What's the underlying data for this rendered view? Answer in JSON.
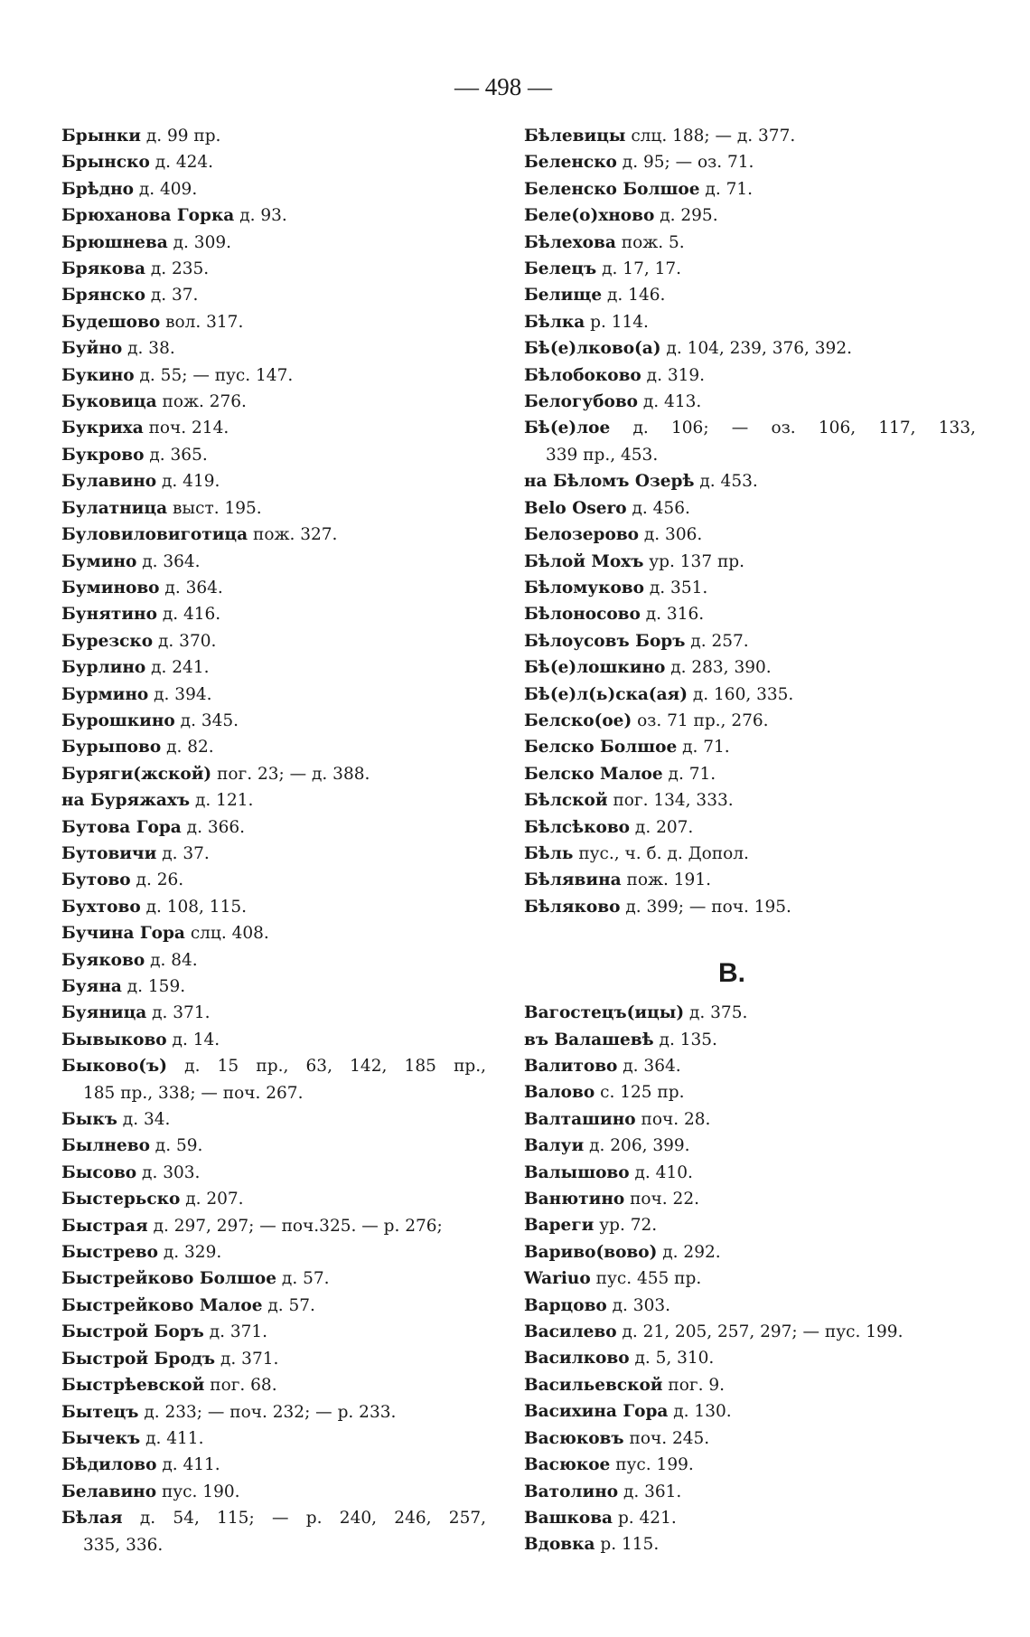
{
  "page_number": "— 498 —",
  "left_column": [
    {
      "name": "Брынки",
      "ref": "д. 99 пр."
    },
    {
      "name": "Брынско",
      "ref": "д. 424."
    },
    {
      "name": "Брѣдно",
      "ref": "д. 409."
    },
    {
      "name": "Брюханова Горка",
      "ref": "д. 93."
    },
    {
      "name": "Брюшнева",
      "ref": "д. 309."
    },
    {
      "name": "Брякова",
      "ref": "д. 235."
    },
    {
      "name": "Брянско",
      "ref": "д. 37."
    },
    {
      "name": "Будешово",
      "ref": "вол. 317."
    },
    {
      "name": "Буйно",
      "ref": "д. 38."
    },
    {
      "name": "Букино",
      "ref": "д. 55; — пус. 147."
    },
    {
      "name": "Буковица",
      "ref": "пож. 276."
    },
    {
      "name": "Букриха",
      "ref": "поч. 214."
    },
    {
      "name": "Букрово",
      "ref": "д. 365."
    },
    {
      "name": "Булавино",
      "ref": "д. 419."
    },
    {
      "name": "Булатница",
      "ref": "выст. 195."
    },
    {
      "name": "Буловиловиготица",
      "ref": "пож. 327."
    },
    {
      "name": "Бумино",
      "ref": "д. 364."
    },
    {
      "name": "Буминово",
      "ref": "д. 364."
    },
    {
      "name": "Бунятино",
      "ref": "д. 416."
    },
    {
      "name": "Бурезско",
      "ref": "д. 370."
    },
    {
      "name": "Бурлино",
      "ref": "д. 241."
    },
    {
      "name": "Бурмино",
      "ref": "д. 394."
    },
    {
      "name": "Бурошкино",
      "ref": "д. 345."
    },
    {
      "name": "Бурыпово",
      "ref": "д. 82."
    },
    {
      "name": "Буряги(жской)",
      "ref": "пог. 23; — д. 388."
    },
    {
      "name": "на Буряжахъ",
      "ref": "д. 121."
    },
    {
      "name": "Бутова Гора",
      "ref": "д. 366."
    },
    {
      "name": "Бутовичи",
      "ref": "д. 37."
    },
    {
      "name": "Бутово",
      "ref": "д. 26."
    },
    {
      "name": "Бухтово",
      "ref": "д. 108, 115."
    },
    {
      "name": "Бучина Гора",
      "ref": "слц. 408."
    },
    {
      "name": "Буяково",
      "ref": "д. 84."
    },
    {
      "name": "Буяна",
      "ref": "д. 159."
    },
    {
      "name": "Буяница",
      "ref": "д. 371."
    },
    {
      "name": "Бывыково",
      "ref": "д. 14."
    },
    {
      "name": "Быково(ъ)",
      "ref": "д.  15 пр., 63, 142, 185 пр.,",
      "cont": "185 пр., 338; — поч. 267."
    },
    {
      "name": "Быкъ",
      "ref": "д. 34."
    },
    {
      "name": "Былнево",
      "ref": "д. 59."
    },
    {
      "name": "Бысово",
      "ref": "д. 303."
    },
    {
      "name": "Быстерьско",
      "ref": "д. 207."
    },
    {
      "name": "Быстрая",
      "ref": "д. 297, 297; — поч.325. — р. 276;"
    },
    {
      "name": "Быстрево",
      "ref": "д. 329."
    },
    {
      "name": "Быстрейково Болшое",
      "ref": "д. 57."
    },
    {
      "name": "Быстрейково Малое",
      "ref": "д. 57."
    },
    {
      "name": "Быстрой Боръ",
      "ref": "д. 371."
    },
    {
      "name": "Быстрой Бродъ",
      "ref": "д. 371."
    },
    {
      "name": "Быстрѣевской",
      "ref": "пог. 68."
    },
    {
      "name": "Бытецъ",
      "ref": "д. 233; — поч. 232; — р. 233."
    },
    {
      "name": "Бычекъ",
      "ref": "д. 411."
    },
    {
      "name": "Бѣдилово",
      "ref": "д. 411."
    },
    {
      "name": "Белавино",
      "ref": "пус. 190."
    },
    {
      "name": "Бѣлая",
      "ref": "д.  54, 115; — р. 240, 246, 257,",
      "cont": "335, 336."
    }
  ],
  "right_column": [
    {
      "name": "Бѣлевицы",
      "ref": "слц. 188; — д. 377."
    },
    {
      "name": "Беленско",
      "ref": "д. 95; — оз. 71."
    },
    {
      "name": "Беленско Болшое",
      "ref": "д. 71."
    },
    {
      "name": "Беле(о)хново",
      "ref": "д. 295."
    },
    {
      "name": "Бѣлехова",
      "ref": "пож. 5."
    },
    {
      "name": "Белецъ",
      "ref": "д. 17, 17."
    },
    {
      "name": "Белище",
      "ref": "д. 146."
    },
    {
      "name": "Бѣлка",
      "ref": "р. 114."
    },
    {
      "name": "Бѣ(е)лково(а)",
      "ref": "д. 104, 239, 376, 392."
    },
    {
      "name": "Бѣлобоково",
      "ref": "д. 319."
    },
    {
      "name": "Белогубово",
      "ref": "д. 413."
    },
    {
      "name": "Бѣ(е)лое",
      "ref": "д.  106; — оз. 106,  117,  133,",
      "cont": "339 пр., 453."
    },
    {
      "name": "на Бѣломъ Озерѣ",
      "ref": "д. 453."
    },
    {
      "name": "Belo Osero",
      "ref": "д. 456."
    },
    {
      "name": "Белозерово",
      "ref": "д. 306."
    },
    {
      "name": "Бѣлой Мохъ",
      "ref": "ур. 137 пр."
    },
    {
      "name": "Бѣломуково",
      "ref": "д. 351."
    },
    {
      "name": "Бѣлоносово",
      "ref": "д. 316."
    },
    {
      "name": "Бѣлоусовъ Боръ",
      "ref": "д. 257."
    },
    {
      "name": "Бѣ(е)лошкино",
      "ref": "д. 283, 390."
    },
    {
      "name": "Бѣ(е)л(ь)ска(ая)",
      "ref": "д. 160, 335."
    },
    {
      "name": "Белско(ое)",
      "ref": "оз. 71 пр., 276."
    },
    {
      "name": "Белско Болшое",
      "ref": "д. 71."
    },
    {
      "name": "Белско Малое",
      "ref": "д. 71."
    },
    {
      "name": "Бѣлской",
      "ref": "пог. 134, 333."
    },
    {
      "name": "Бѣлсѣково",
      "ref": "д. 207."
    },
    {
      "name": "Бѣль",
      "ref": "пус., ч. б. д. Допол."
    },
    {
      "name": "Бѣлявина",
      "ref": "пож. 191."
    },
    {
      "name": "Бѣляково",
      "ref": "д. 399; — поч. 195."
    }
  ],
  "section_heading": "B.",
  "section_entries": [
    {
      "name": "Вагостецъ(ицы)",
      "ref": "д. 375."
    },
    {
      "name": "въ Валашевѣ",
      "ref": "д. 135."
    },
    {
      "name": "Валитово",
      "ref": "д. 364."
    },
    {
      "name": "Валово",
      "ref": "с. 125 пр."
    },
    {
      "name": "Валташино",
      "ref": "поч. 28."
    },
    {
      "name": "Валуи",
      "ref": "д. 206, 399."
    },
    {
      "name": "Валышово",
      "ref": "д. 410."
    },
    {
      "name": "Ванютино",
      "ref": "поч. 22."
    },
    {
      "name": "Вареги",
      "ref": "ур. 72."
    },
    {
      "name": "Вариво(вово)",
      "ref": "д. 292."
    },
    {
      "name": "Wariuo",
      "ref": "пус. 455 пр."
    },
    {
      "name": "Варцово",
      "ref": "д. 303."
    },
    {
      "name": "Василево",
      "ref": "д. 21, 205, 257, 297; — пус. 199."
    },
    {
      "name": "Василково",
      "ref": "д. 5, 310."
    },
    {
      "name": "Васильевской",
      "ref": "пог. 9."
    },
    {
      "name": "Васихина Гора",
      "ref": "д. 130."
    },
    {
      "name": "Васюковъ",
      "ref": "поч. 245."
    },
    {
      "name": "Васюкое",
      "ref": "пус. 199."
    },
    {
      "name": "Ватолино",
      "ref": "д. 361."
    },
    {
      "name": "Вашкова",
      "ref": "р. 421."
    },
    {
      "name": "Вдовка",
      "ref": "р. 115."
    }
  ]
}
